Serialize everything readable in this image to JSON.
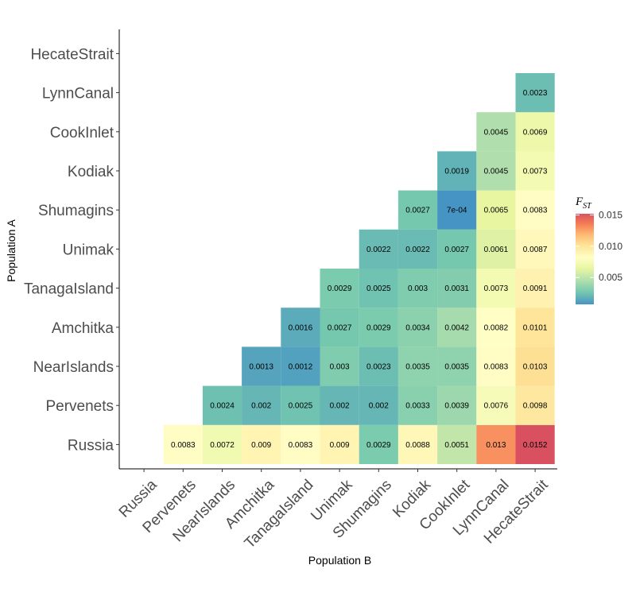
{
  "chart_data": {
    "type": "heatmap",
    "title": "",
    "xlabel": "Population B",
    "ylabel": "Population A",
    "x_categories": [
      "Russia",
      "Pervenets",
      "NearIslands",
      "Amchitka",
      "TanagaIsland",
      "Unimak",
      "Shumagins",
      "Kodiak",
      "CookInlet",
      "LynnCanal",
      "HecateStrait"
    ],
    "y_categories": [
      "Russia",
      "Pervenets",
      "NearIslands",
      "Amchitka",
      "TanagaIsland",
      "Unimak",
      "Shumagins",
      "Kodiak",
      "CookInlet",
      "LynnCanal",
      "HecateStrait"
    ],
    "cells": [
      {
        "a": "Russia",
        "b": "Pervenets",
        "value": 0.0083,
        "label": "0.0083"
      },
      {
        "a": "Russia",
        "b": "NearIslands",
        "value": 0.0072,
        "label": "0.0072"
      },
      {
        "a": "Russia",
        "b": "Amchitka",
        "value": 0.009,
        "label": "0.009"
      },
      {
        "a": "Russia",
        "b": "TanagaIsland",
        "value": 0.0083,
        "label": "0.0083"
      },
      {
        "a": "Russia",
        "b": "Unimak",
        "value": 0.009,
        "label": "0.009"
      },
      {
        "a": "Russia",
        "b": "Shumagins",
        "value": 0.0029,
        "label": "0.0029"
      },
      {
        "a": "Russia",
        "b": "Kodiak",
        "value": 0.0088,
        "label": "0.0088"
      },
      {
        "a": "Russia",
        "b": "CookInlet",
        "value": 0.0051,
        "label": "0.0051"
      },
      {
        "a": "Russia",
        "b": "LynnCanal",
        "value": 0.013,
        "label": "0.013"
      },
      {
        "a": "Russia",
        "b": "HecateStrait",
        "value": 0.0152,
        "label": "0.0152"
      },
      {
        "a": "Pervenets",
        "b": "NearIslands",
        "value": 0.0024,
        "label": "0.0024"
      },
      {
        "a": "Pervenets",
        "b": "Amchitka",
        "value": 0.002,
        "label": "0.002"
      },
      {
        "a": "Pervenets",
        "b": "TanagaIsland",
        "value": 0.0025,
        "label": "0.0025"
      },
      {
        "a": "Pervenets",
        "b": "Unimak",
        "value": 0.002,
        "label": "0.002"
      },
      {
        "a": "Pervenets",
        "b": "Shumagins",
        "value": 0.002,
        "label": "0.002"
      },
      {
        "a": "Pervenets",
        "b": "Kodiak",
        "value": 0.0033,
        "label": "0.0033"
      },
      {
        "a": "Pervenets",
        "b": "CookInlet",
        "value": 0.0039,
        "label": "0.0039"
      },
      {
        "a": "Pervenets",
        "b": "LynnCanal",
        "value": 0.0076,
        "label": "0.0076"
      },
      {
        "a": "Pervenets",
        "b": "HecateStrait",
        "value": 0.0098,
        "label": "0.0098"
      },
      {
        "a": "NearIslands",
        "b": "Amchitka",
        "value": 0.0013,
        "label": "0.0013"
      },
      {
        "a": "NearIslands",
        "b": "TanagaIsland",
        "value": 0.0012,
        "label": "0.0012"
      },
      {
        "a": "NearIslands",
        "b": "Unimak",
        "value": 0.003,
        "label": "0.003"
      },
      {
        "a": "NearIslands",
        "b": "Shumagins",
        "value": 0.0023,
        "label": "0.0023"
      },
      {
        "a": "NearIslands",
        "b": "Kodiak",
        "value": 0.0035,
        "label": "0.0035"
      },
      {
        "a": "NearIslands",
        "b": "CookInlet",
        "value": 0.0035,
        "label": "0.0035"
      },
      {
        "a": "NearIslands",
        "b": "LynnCanal",
        "value": 0.0083,
        "label": "0.0083"
      },
      {
        "a": "NearIslands",
        "b": "HecateStrait",
        "value": 0.0103,
        "label": "0.0103"
      },
      {
        "a": "Amchitka",
        "b": "TanagaIsland",
        "value": 0.0016,
        "label": "0.0016"
      },
      {
        "a": "Amchitka",
        "b": "Unimak",
        "value": 0.0027,
        "label": "0.0027"
      },
      {
        "a": "Amchitka",
        "b": "Shumagins",
        "value": 0.0029,
        "label": "0.0029"
      },
      {
        "a": "Amchitka",
        "b": "Kodiak",
        "value": 0.0034,
        "label": "0.0034"
      },
      {
        "a": "Amchitka",
        "b": "CookInlet",
        "value": 0.0042,
        "label": "0.0042"
      },
      {
        "a": "Amchitka",
        "b": "LynnCanal",
        "value": 0.0082,
        "label": "0.0082"
      },
      {
        "a": "Amchitka",
        "b": "HecateStrait",
        "value": 0.0101,
        "label": "0.0101"
      },
      {
        "a": "TanagaIsland",
        "b": "Unimak",
        "value": 0.0029,
        "label": "0.0029"
      },
      {
        "a": "TanagaIsland",
        "b": "Shumagins",
        "value": 0.0025,
        "label": "0.0025"
      },
      {
        "a": "TanagaIsland",
        "b": "Kodiak",
        "value": 0.003,
        "label": "0.003"
      },
      {
        "a": "TanagaIsland",
        "b": "CookInlet",
        "value": 0.0031,
        "label": "0.0031"
      },
      {
        "a": "TanagaIsland",
        "b": "LynnCanal",
        "value": 0.0073,
        "label": "0.0073"
      },
      {
        "a": "TanagaIsland",
        "b": "HecateStrait",
        "value": 0.0091,
        "label": "0.0091"
      },
      {
        "a": "Unimak",
        "b": "Shumagins",
        "value": 0.0022,
        "label": "0.0022"
      },
      {
        "a": "Unimak",
        "b": "Kodiak",
        "value": 0.0022,
        "label": "0.0022"
      },
      {
        "a": "Unimak",
        "b": "CookInlet",
        "value": 0.0027,
        "label": "0.0027"
      },
      {
        "a": "Unimak",
        "b": "LynnCanal",
        "value": 0.0061,
        "label": "0.0061"
      },
      {
        "a": "Unimak",
        "b": "HecateStrait",
        "value": 0.0087,
        "label": "0.0087"
      },
      {
        "a": "Shumagins",
        "b": "Kodiak",
        "value": 0.0027,
        "label": "0.0027"
      },
      {
        "a": "Shumagins",
        "b": "CookInlet",
        "value": 0.0007,
        "label": "7e-04"
      },
      {
        "a": "Shumagins",
        "b": "LynnCanal",
        "value": 0.0065,
        "label": "0.0065"
      },
      {
        "a": "Shumagins",
        "b": "HecateStrait",
        "value": 0.0083,
        "label": "0.0083"
      },
      {
        "a": "Kodiak",
        "b": "CookInlet",
        "value": 0.0019,
        "label": "0.0019"
      },
      {
        "a": "Kodiak",
        "b": "LynnCanal",
        "value": 0.0045,
        "label": "0.0045"
      },
      {
        "a": "Kodiak",
        "b": "HecateStrait",
        "value": 0.0073,
        "label": "0.0073"
      },
      {
        "a": "CookInlet",
        "b": "LynnCanal",
        "value": 0.0045,
        "label": "0.0045"
      },
      {
        "a": "CookInlet",
        "b": "HecateStrait",
        "value": 0.0069,
        "label": "0.0069"
      },
      {
        "a": "LynnCanal",
        "b": "HecateStrait",
        "value": 0.0023,
        "label": "0.0023"
      }
    ],
    "legend": {
      "title_main": "F",
      "title_sub": "ST",
      "position": "right",
      "range": [
        0.0007,
        0.0152
      ],
      "ticks": [
        0.005,
        0.01,
        0.015
      ],
      "tick_labels": [
        "0.005",
        "0.010",
        "0.015"
      ]
    },
    "colorscale": {
      "name": "Spectral (reversed)",
      "stops": [
        {
          "value": 0.0007,
          "color": "#3288bd"
        },
        {
          "value": 0.0027,
          "color": "#66c2a5"
        },
        {
          "value": 0.0046,
          "color": "#abdda4"
        },
        {
          "value": 0.0065,
          "color": "#e6f598"
        },
        {
          "value": 0.0082,
          "color": "#ffffbf"
        },
        {
          "value": 0.0102,
          "color": "#fee08b"
        },
        {
          "value": 0.012,
          "color": "#fdae61"
        },
        {
          "value": 0.0136,
          "color": "#f46d43"
        },
        {
          "value": 0.0152,
          "color": "#d53e4f"
        }
      ]
    },
    "cell_fill_opacity": 0.9,
    "grid": false
  }
}
